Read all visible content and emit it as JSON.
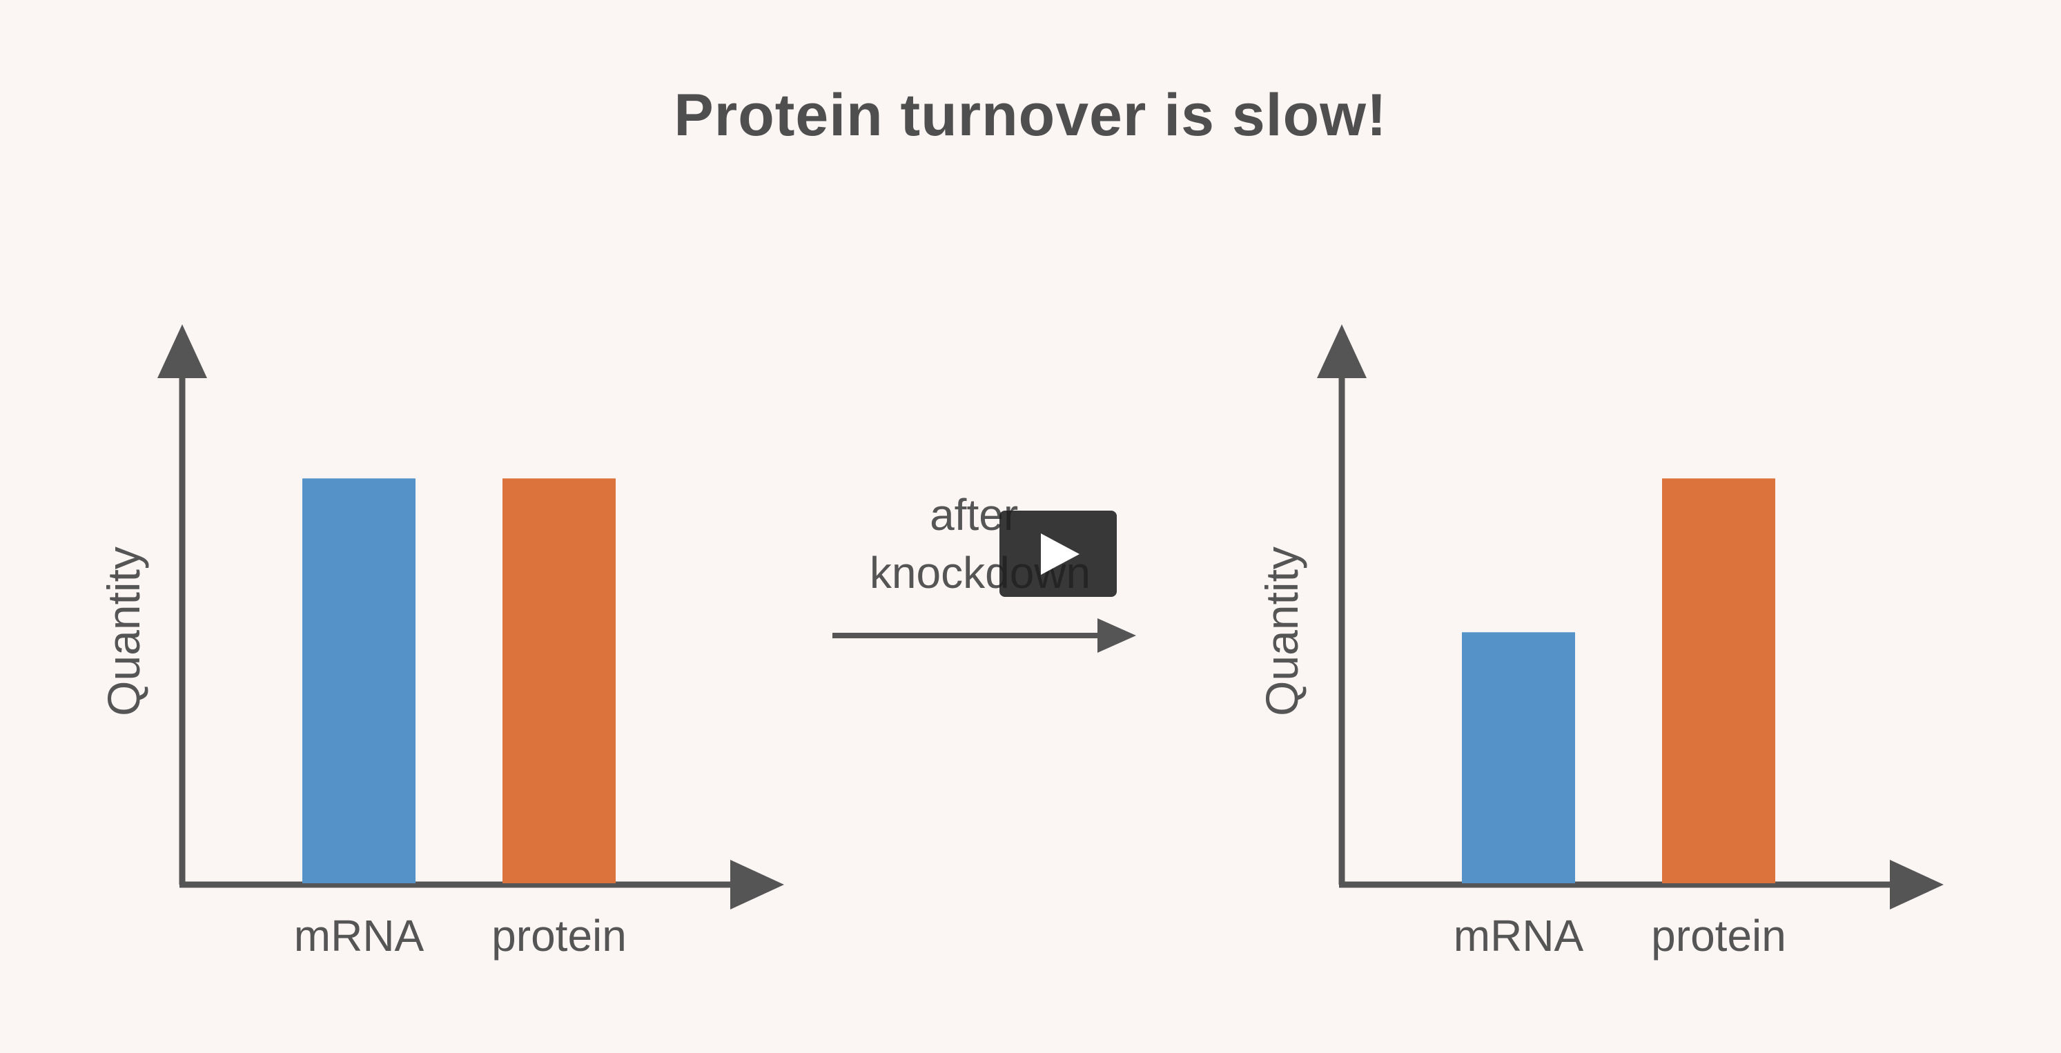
{
  "title": "Protein turnover is slow!",
  "transition": {
    "line1": "after",
    "line2": "knockdown"
  },
  "colors": {
    "mrna": "#5592c8",
    "protein": "#dd733c",
    "axis": "#555555",
    "background": "#fbf5f4"
  },
  "player": {
    "icon": "play-icon"
  },
  "chart_data": [
    {
      "type": "bar",
      "categories": [
        "mRNA",
        "protein"
      ],
      "values": [
        1.0,
        1.0
      ],
      "ylabel": "Quantity",
      "ylim": [
        0,
        1.2
      ],
      "grid": false,
      "legend": "none"
    },
    {
      "type": "bar",
      "categories": [
        "mRNA",
        "protein"
      ],
      "values": [
        0.62,
        1.0
      ],
      "ylabel": "Quantity",
      "ylim": [
        0,
        1.2
      ],
      "grid": false,
      "legend": "none"
    }
  ]
}
